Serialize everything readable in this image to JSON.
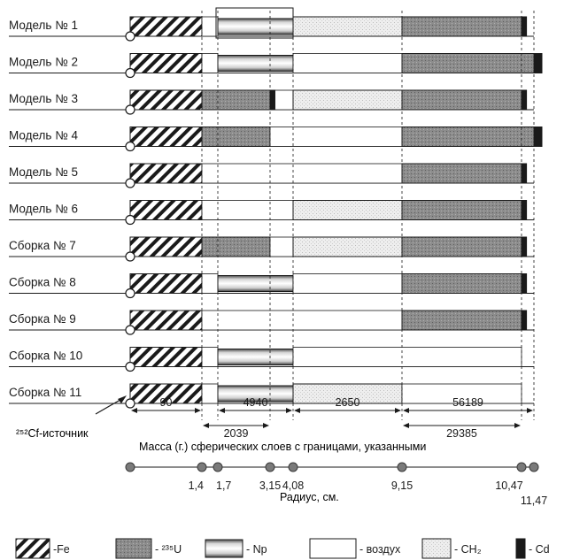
{
  "colors": {
    "line": "#1a1a1a",
    "u235": "#8c8c8c",
    "cd": "#1a1a1a",
    "ch2": "#e6e6e6",
    "node": "#7a7a7a"
  },
  "materials": {
    "fe": {
      "label": "-Fe",
      "pattern": "diagonal-hatch"
    },
    "u235": {
      "label": "- ²³⁵U",
      "pattern": "grey-stipple"
    },
    "np": {
      "label": "- Np",
      "pattern": "vertical-gradient"
    },
    "air": {
      "label": "- воздух",
      "pattern": "blank"
    },
    "ch2": {
      "label": "- CH₂",
      "pattern": "light-stipple"
    },
    "cd": {
      "label": "- Cd",
      "pattern": "solid-black"
    }
  },
  "legend_order": [
    "fe",
    "u235",
    "np",
    "air",
    "ch2",
    "cd"
  ],
  "radii_cm": [
    0,
    1.4,
    1.7,
    3.15,
    4.08,
    9.15,
    10.47,
    11.47
  ],
  "models": [
    {
      "label": "Модель № 1",
      "layers": [
        [
          "fe",
          0,
          1.4
        ],
        [
          "air",
          1.4,
          1.7
        ],
        [
          "np",
          1.7,
          4.08
        ],
        [
          "ch2",
          4.08,
          9.15
        ],
        [
          "u235",
          9.15,
          11.22
        ],
        [
          "cd",
          11.22,
          11.32
        ]
      ],
      "box": [
        1.7,
        4.08
      ]
    },
    {
      "label": "Модель № 2",
      "layers": [
        [
          "fe",
          0,
          1.4
        ],
        [
          "air",
          1.4,
          1.7
        ],
        [
          "np",
          1.7,
          4.08
        ],
        [
          "air",
          4.08,
          9.15
        ],
        [
          "u235",
          9.15,
          11.47
        ],
        [
          "cd",
          11.47,
          11.6
        ]
      ]
    },
    {
      "label": "Модель № 3",
      "layers": [
        [
          "fe",
          0,
          1.4
        ],
        [
          "u235",
          1.4,
          3.15
        ],
        [
          "cd",
          3.15,
          3.35
        ],
        [
          "air",
          3.35,
          4.08
        ],
        [
          "ch2",
          4.08,
          9.15
        ],
        [
          "u235",
          9.15,
          11.22
        ],
        [
          "cd",
          11.22,
          11.32
        ]
      ]
    },
    {
      "label": "Модель № 4",
      "layers": [
        [
          "fe",
          0,
          1.4
        ],
        [
          "u235",
          1.4,
          3.15
        ],
        [
          "air",
          3.15,
          9.15
        ],
        [
          "u235",
          9.15,
          11.47
        ],
        [
          "cd",
          11.47,
          11.6
        ]
      ]
    },
    {
      "label": "Модель № 5",
      "layers": [
        [
          "fe",
          0,
          1.4
        ],
        [
          "air",
          1.4,
          9.15
        ],
        [
          "u235",
          9.15,
          11.22
        ],
        [
          "cd",
          11.22,
          11.32
        ]
      ]
    },
    {
      "label": "Модель № 6",
      "layers": [
        [
          "fe",
          0,
          1.4
        ],
        [
          "air",
          1.4,
          4.08
        ],
        [
          "ch2",
          4.08,
          9.15
        ],
        [
          "u235",
          9.15,
          11.22
        ],
        [
          "cd",
          11.22,
          11.32
        ]
      ]
    },
    {
      "label": "Сборка № 7",
      "layers": [
        [
          "fe",
          0,
          1.4
        ],
        [
          "u235",
          1.4,
          3.15
        ],
        [
          "air",
          3.15,
          4.08
        ],
        [
          "ch2",
          4.08,
          9.15
        ],
        [
          "u235",
          9.15,
          11.22
        ],
        [
          "cd",
          11.22,
          11.32
        ]
      ]
    },
    {
      "label": "Сборка № 8",
      "layers": [
        [
          "fe",
          0,
          1.4
        ],
        [
          "air",
          1.4,
          1.7
        ],
        [
          "np",
          1.7,
          4.08
        ],
        [
          "air",
          4.08,
          9.15
        ],
        [
          "u235",
          9.15,
          11.22
        ],
        [
          "cd",
          11.22,
          11.32
        ]
      ]
    },
    {
      "label": "Сборка № 9",
      "layers": [
        [
          "fe",
          0,
          1.4
        ],
        [
          "air",
          1.4,
          9.15
        ],
        [
          "u235",
          9.15,
          11.22
        ],
        [
          "cd",
          11.22,
          11.32
        ]
      ]
    },
    {
      "label": "Сборка № 10",
      "layers": [
        [
          "fe",
          0,
          1.4
        ],
        [
          "air",
          1.4,
          1.7
        ],
        [
          "np",
          1.7,
          4.08
        ],
        [
          "air",
          4.08,
          11.22
        ]
      ]
    },
    {
      "label": "Сборка № 11",
      "layers": [
        [
          "fe",
          0,
          1.4
        ],
        [
          "air",
          1.4,
          1.7
        ],
        [
          "np",
          1.7,
          4.08
        ],
        [
          "ch2",
          4.08,
          9.15
        ],
        [
          "air",
          9.15,
          11.22
        ]
      ]
    }
  ],
  "source_label": "²⁵²Cf-источник",
  "masses": {
    "upper": [
      {
        "text": "90",
        "from": 0,
        "to": 1.4
      },
      {
        "text": "4940",
        "from": 1.7,
        "to": 4.08
      },
      {
        "text": "2650",
        "from": 4.08,
        "to": 9.15
      },
      {
        "text": "56189",
        "from": 9.15,
        "to": 11.47
      }
    ],
    "lower": [
      {
        "text": "2039",
        "from": 1.4,
        "to": 3.15
      },
      {
        "text": "29385",
        "from": 9.15,
        "to": 11.22
      }
    ],
    "caption": "Масса (г.) сферических слоев с границами, указанными"
  },
  "axis": {
    "points": [
      0,
      1.4,
      1.7,
      3.15,
      4.08,
      9.15,
      11.22,
      11.47
    ],
    "labels": [
      {
        "text": "1,4",
        "r": 1.4,
        "row": 1,
        "anchor": "end"
      },
      {
        "text": "1,7",
        "r": 1.7,
        "row": 1,
        "anchor": "start"
      },
      {
        "text": "3,15",
        "r": 3.15,
        "row": 1,
        "anchor": "middle"
      },
      {
        "text": "4,08",
        "r": 4.08,
        "row": 1,
        "anchor": "middle"
      },
      {
        "text": "9,15",
        "r": 9.15,
        "row": 1,
        "anchor": "middle"
      },
      {
        "text": "10,47",
        "r": 10.47,
        "row": 1,
        "anchor": "middle"
      },
      {
        "text": "11,47",
        "r": 11.47,
        "row": 2,
        "anchor": "middle"
      }
    ],
    "title": "Радиус, см."
  }
}
